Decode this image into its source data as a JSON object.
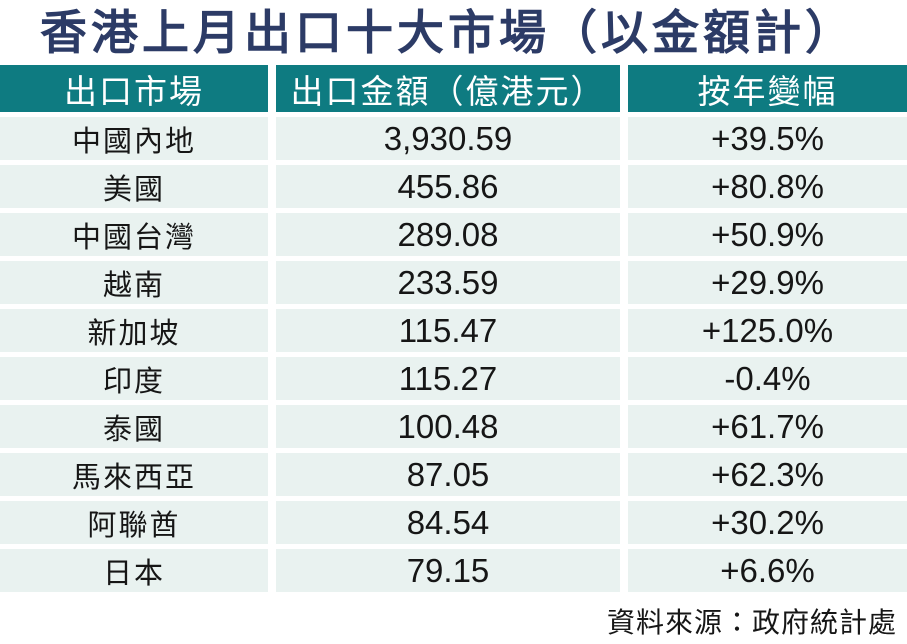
{
  "title": "香港上月出口十大市場（以金額計）",
  "colors": {
    "header_teal": "#0E7B81",
    "row_background": "#E9F2F0",
    "title_navy": "#2C3B66",
    "body_text": "#161616"
  },
  "table": {
    "headers": [
      "出口市場",
      "出口金額（億港元）",
      "按年變幅"
    ],
    "rows": [
      {
        "market": "中國內地",
        "value": "3,930.59",
        "change": "+39.5%"
      },
      {
        "market": "美國",
        "value": "455.86",
        "change": "+80.8%"
      },
      {
        "market": "中國台灣",
        "value": "289.08",
        "change": "+50.9%"
      },
      {
        "market": "越南",
        "value": "233.59",
        "change": "+29.9%"
      },
      {
        "market": "新加坡",
        "value": "115.47",
        "change": "+125.0%"
      },
      {
        "market": "印度",
        "value": "115.27",
        "change": "-0.4%"
      },
      {
        "market": "泰國",
        "value": "100.48",
        "change": "+61.7%"
      },
      {
        "market": "馬來西亞",
        "value": "87.05",
        "change": "+62.3%"
      },
      {
        "market": "阿聯酋",
        "value": "84.54",
        "change": "+30.2%"
      },
      {
        "market": "日本",
        "value": "79.15",
        "change": "+6.6%"
      }
    ]
  },
  "footer": {
    "source": "資料來源：政府統計處"
  },
  "chart_data": {
    "type": "table",
    "title": "香港上月出口十大市場（以金額計）",
    "columns": [
      "出口市場",
      "出口金額（億港元）",
      "按年變幅"
    ],
    "rows": [
      [
        "中國內地",
        3930.59,
        "+39.5%"
      ],
      [
        "美國",
        455.86,
        "+80.8%"
      ],
      [
        "中國台灣",
        289.08,
        "+50.9%"
      ],
      [
        "越南",
        233.59,
        "+29.9%"
      ],
      [
        "新加坡",
        115.47,
        "+125.0%"
      ],
      [
        "印度",
        115.27,
        "-0.4%"
      ],
      [
        "泰國",
        100.48,
        "+61.7%"
      ],
      [
        "馬來西亞",
        87.05,
        "+62.3%"
      ],
      [
        "阿聯酋",
        84.54,
        "+30.2%"
      ],
      [
        "日本",
        79.15,
        "+6.6%"
      ]
    ],
    "source": "資料來源：政府統計處"
  }
}
